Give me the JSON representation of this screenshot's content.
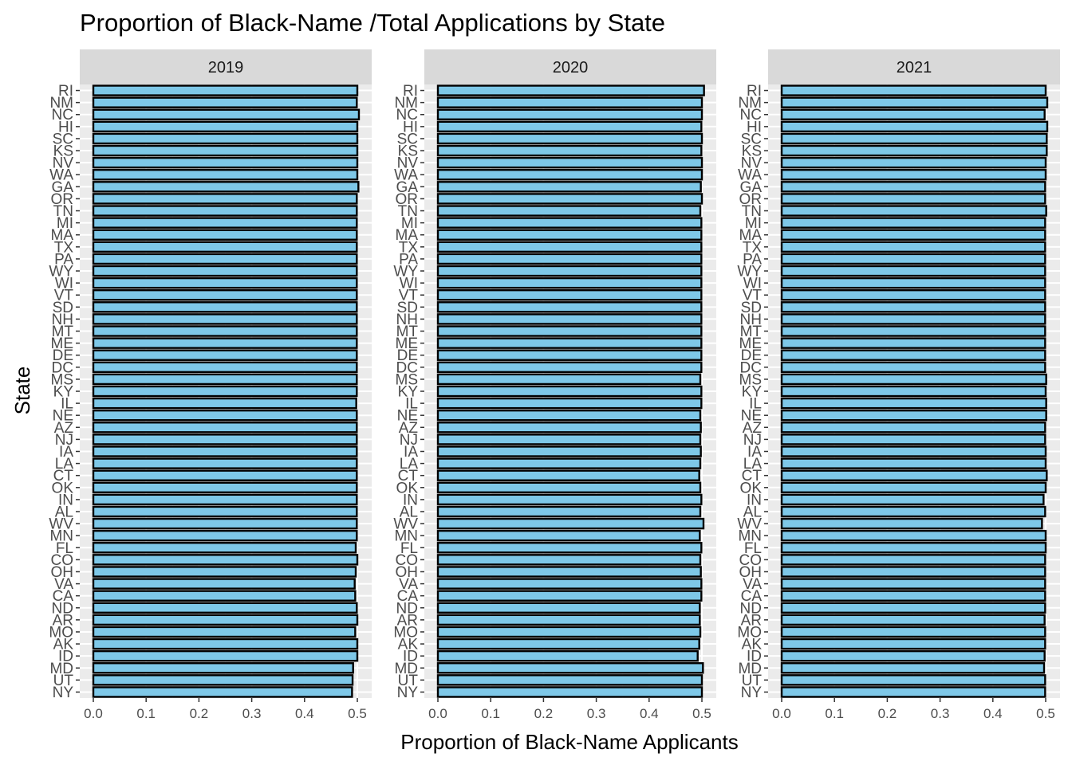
{
  "chart_data": {
    "type": "bar",
    "orientation": "horizontal",
    "faceted": true,
    "title": "Proportion of Black-Name /Total Applications by State",
    "xlabel": "Proportion of Black-Name Applicants",
    "ylabel": "State",
    "xlim": [
      0,
      0.5
    ],
    "x_ticks": [
      "0.0",
      "0.1",
      "0.2",
      "0.3",
      "0.4",
      "0.5"
    ],
    "grid": true,
    "bar_color": "#7EC8E8",
    "bar_border": "#000000",
    "panel_background": "#EBEBEB",
    "strip_background": "#D9D9D9",
    "categories": [
      "RI",
      "NM",
      "NC",
      "HI",
      "SC",
      "KS",
      "NV",
      "WA",
      "GA",
      "OR",
      "TN",
      "MI",
      "MA",
      "TX",
      "PA",
      "WY",
      "WI",
      "VT",
      "SD",
      "NH",
      "MT",
      "ME",
      "DE",
      "DC",
      "MS",
      "KY",
      "IL",
      "NE",
      "AZ",
      "NJ",
      "IA",
      "LA",
      "CT",
      "OK",
      "IN",
      "AL",
      "WV",
      "MN",
      "FL",
      "CO",
      "OH",
      "VA",
      "CA",
      "ND",
      "AR",
      "MO",
      "AK",
      "ID",
      "MD",
      "UT",
      "NY"
    ],
    "panels": [
      {
        "label": "2019",
        "values": [
          0.5,
          0.499,
          0.503,
          0.5,
          0.5,
          0.5,
          0.5,
          0.5,
          0.502,
          0.499,
          0.499,
          0.499,
          0.499,
          0.499,
          0.499,
          0.499,
          0.499,
          0.499,
          0.499,
          0.499,
          0.499,
          0.499,
          0.499,
          0.499,
          0.499,
          0.499,
          0.498,
          0.499,
          0.499,
          0.499,
          0.499,
          0.499,
          0.499,
          0.499,
          0.499,
          0.499,
          0.499,
          0.499,
          0.497,
          0.5,
          0.497,
          0.495,
          0.496,
          0.499,
          0.5,
          0.496,
          0.5,
          0.5,
          0.492,
          0.491,
          0.49
        ]
      },
      {
        "label": "2020",
        "values": [
          0.504,
          0.5,
          0.5,
          0.499,
          0.5,
          0.499,
          0.5,
          0.5,
          0.498,
          0.5,
          0.497,
          0.499,
          0.499,
          0.499,
          0.499,
          0.499,
          0.499,
          0.499,
          0.499,
          0.499,
          0.499,
          0.499,
          0.499,
          0.499,
          0.497,
          0.499,
          0.499,
          0.497,
          0.498,
          0.497,
          0.498,
          0.497,
          0.495,
          0.497,
          0.499,
          0.497,
          0.503,
          0.496,
          0.499,
          0.497,
          0.498,
          0.499,
          0.499,
          0.496,
          0.496,
          0.497,
          0.495,
          0.492,
          0.502,
          0.5,
          0.5
        ]
      },
      {
        "label": "2021",
        "values": [
          0.5,
          0.503,
          0.498,
          0.503,
          0.502,
          0.502,
          0.5,
          0.5,
          0.499,
          0.499,
          0.501,
          0.499,
          0.499,
          0.499,
          0.499,
          0.499,
          0.499,
          0.499,
          0.499,
          0.499,
          0.499,
          0.499,
          0.499,
          0.499,
          0.501,
          0.5,
          0.501,
          0.501,
          0.499,
          0.499,
          0.5,
          0.5,
          0.502,
          0.5,
          0.496,
          0.499,
          0.493,
          0.5,
          0.5,
          0.499,
          0.499,
          0.499,
          0.499,
          0.499,
          0.498,
          0.499,
          0.499,
          0.498,
          0.497,
          0.499,
          0.499
        ]
      }
    ]
  }
}
